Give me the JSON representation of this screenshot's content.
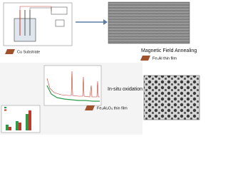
{
  "labels": {
    "substrate": "Cu Substrate",
    "annealing": "Magnetic Field Annealing",
    "film1": "Fe₃Al thin film",
    "oxidation": "In-situ oxidation",
    "film2": "Fe₃Al₂O₄ thin film"
  }
}
